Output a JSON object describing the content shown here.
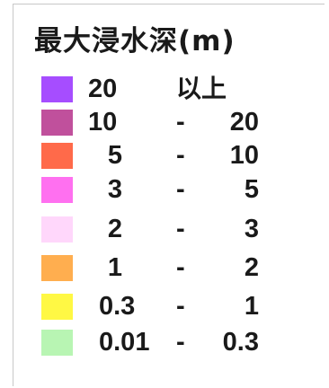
{
  "legend": {
    "title": "最大浸水深(m)",
    "items": [
      {
        "low": "20",
        "sep": "",
        "high": "以上",
        "color": "#a64dff"
      },
      {
        "low": "10",
        "sep": "-",
        "high": "20",
        "color": "#c0509c"
      },
      {
        "low": "5",
        "sep": "-",
        "high": "10",
        "color": "#ff6a4a"
      },
      {
        "low": "3",
        "sep": "-",
        "high": "5",
        "color": "#ff70f0"
      },
      {
        "low": "2",
        "sep": "-",
        "high": "3",
        "color": "#ffd7fb"
      },
      {
        "low": "1",
        "sep": "-",
        "high": "2",
        "color": "#ffae4f"
      },
      {
        "low": "0.3",
        "sep": "-",
        "high": "1",
        "color": "#fff844"
      },
      {
        "low": "0.01",
        "sep": "-",
        "high": "0.3",
        "color": "#b8f5b3"
      }
    ]
  }
}
